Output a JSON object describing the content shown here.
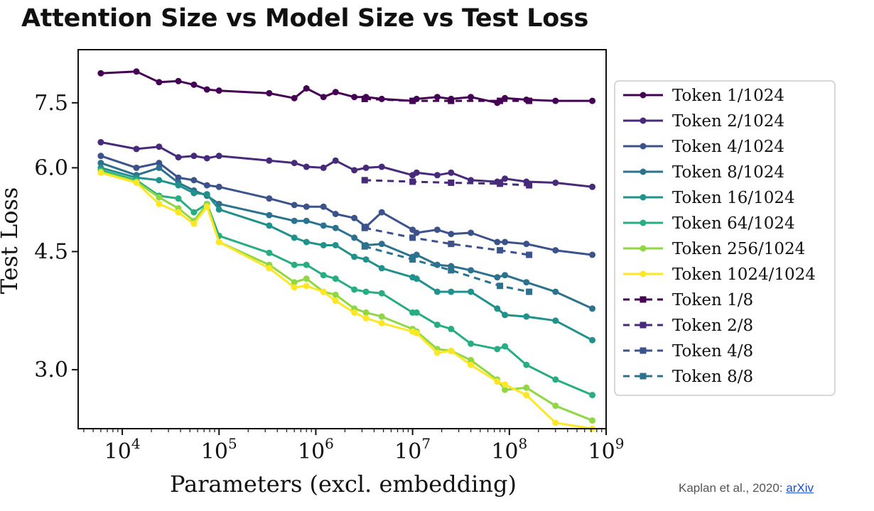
{
  "title": "Attention Size vs Model Size vs Test Loss",
  "source": {
    "text": "Kaplan et al., 2020: ",
    "link_label": "arXiv"
  },
  "chart_data": {
    "type": "line",
    "xlabel": "Parameters (excl. embedding)",
    "ylabel": "Test Loss",
    "x_scale": "log",
    "y_scale": "log",
    "xlim": [
      3500,
      1000000000
    ],
    "ylim": [
      2.45,
      9.0
    ],
    "x_ticks": [
      {
        "value": 10000,
        "base": "10",
        "exp": "4"
      },
      {
        "value": 100000,
        "base": "10",
        "exp": "5"
      },
      {
        "value": 1000000,
        "base": "10",
        "exp": "6"
      },
      {
        "value": 10000000,
        "base": "10",
        "exp": "7"
      },
      {
        "value": 100000000,
        "base": "10",
        "exp": "8"
      },
      {
        "value": 1000000000,
        "base": "10",
        "exp": "9"
      }
    ],
    "y_ticks": [
      {
        "value": 3.0,
        "label": "3.0"
      },
      {
        "value": 4.5,
        "label": "4.5"
      },
      {
        "value": 6.0,
        "label": "6.0"
      },
      {
        "value": 7.5,
        "label": "7.5"
      }
    ],
    "grid": false,
    "legend_position": "right",
    "series": [
      {
        "name": "Token 1/1024",
        "color": "#440154",
        "style": "solid",
        "marker": "circle",
        "x": [
          6000,
          14000,
          24000,
          38000,
          55000,
          75000,
          100000,
          330000,
          600000,
          800000,
          1200000,
          1600000,
          2500000,
          3300000,
          4800000,
          10000000,
          11000000,
          18000000,
          25000000,
          40000000,
          75000000,
          90000000,
          150000000,
          300000000,
          720000000
        ],
        "y": [
          8.3,
          8.35,
          8.05,
          8.08,
          7.98,
          7.85,
          7.82,
          7.75,
          7.62,
          7.88,
          7.65,
          7.78,
          7.65,
          7.65,
          7.6,
          7.55,
          7.6,
          7.65,
          7.6,
          7.65,
          7.5,
          7.62,
          7.58,
          7.55,
          7.55
        ]
      },
      {
        "name": "Token 2/1024",
        "color": "#472a7a",
        "style": "solid",
        "marker": "circle",
        "x": [
          6000,
          14000,
          24000,
          38000,
          55000,
          75000,
          100000,
          330000,
          600000,
          800000,
          1200000,
          1600000,
          2500000,
          3300000,
          4800000,
          10000000,
          11000000,
          18000000,
          25000000,
          40000000,
          75000000,
          90000000,
          150000000,
          300000000,
          720000000
        ],
        "y": [
          6.55,
          6.4,
          6.45,
          6.22,
          6.25,
          6.2,
          6.25,
          6.15,
          6.1,
          6.02,
          6.0,
          6.15,
          5.95,
          6.0,
          6.02,
          5.85,
          5.9,
          5.85,
          5.9,
          5.75,
          5.72,
          5.78,
          5.72,
          5.7,
          5.62
        ]
      },
      {
        "name": "Token 4/1024",
        "color": "#3b528b",
        "style": "solid",
        "marker": "circle",
        "x": [
          6000,
          14000,
          24000,
          38000,
          55000,
          75000,
          100000,
          330000,
          600000,
          800000,
          1200000,
          1600000,
          2500000,
          3300000,
          4800000,
          10000000,
          11000000,
          18000000,
          25000000,
          40000000,
          75000000,
          90000000,
          150000000,
          300000000,
          720000000
        ],
        "y": [
          6.25,
          6.0,
          6.1,
          5.8,
          5.75,
          5.65,
          5.62,
          5.4,
          5.28,
          5.25,
          5.25,
          5.12,
          5.05,
          4.9,
          5.15,
          4.85,
          4.8,
          4.85,
          4.78,
          4.8,
          4.65,
          4.65,
          4.62,
          4.52,
          4.45
        ]
      },
      {
        "name": "Token 8/1024",
        "color": "#2c728e",
        "style": "solid",
        "marker": "circle",
        "x": [
          6000,
          14000,
          24000,
          38000,
          55000,
          75000,
          100000,
          330000,
          600000,
          800000,
          1200000,
          1600000,
          2500000,
          3300000,
          4800000,
          10000000,
          11000000,
          18000000,
          25000000,
          40000000,
          75000000,
          90000000,
          150000000,
          300000000,
          720000000
        ],
        "y": [
          6.1,
          5.85,
          6.0,
          5.7,
          5.55,
          5.45,
          5.3,
          5.1,
          5.0,
          5.0,
          4.92,
          4.88,
          4.72,
          4.6,
          4.62,
          4.42,
          4.45,
          4.3,
          4.28,
          4.22,
          4.12,
          4.15,
          4.05,
          3.92,
          3.7
        ]
      },
      {
        "name": "Token 16/1024",
        "color": "#21918c",
        "style": "solid",
        "marker": "circle",
        "x": [
          6000,
          14000,
          24000,
          38000,
          55000,
          75000,
          100000,
          330000,
          600000,
          800000,
          1200000,
          1600000,
          2500000,
          3300000,
          4800000,
          10000000,
          11000000,
          18000000,
          25000000,
          40000000,
          75000000,
          90000000,
          150000000,
          300000000,
          720000000
        ],
        "y": [
          6.0,
          5.8,
          5.75,
          5.65,
          5.5,
          5.48,
          5.2,
          4.92,
          4.72,
          4.65,
          4.6,
          4.6,
          4.42,
          4.38,
          4.25,
          4.12,
          4.1,
          3.92,
          3.92,
          3.92,
          3.7,
          3.62,
          3.6,
          3.55,
          3.32
        ]
      },
      {
        "name": "Token 64/1024",
        "color": "#27ad81",
        "style": "solid",
        "marker": "circle",
        "x": [
          6000,
          14000,
          24000,
          38000,
          55000,
          75000,
          100000,
          330000,
          600000,
          800000,
          1200000,
          1600000,
          2500000,
          3300000,
          4800000,
          10000000,
          11000000,
          18000000,
          25000000,
          40000000,
          75000000,
          90000000,
          150000000,
          300000000,
          720000000
        ],
        "y": [
          5.95,
          5.75,
          5.45,
          5.4,
          5.15,
          5.3,
          4.75,
          4.48,
          4.3,
          4.3,
          4.15,
          4.1,
          3.95,
          3.92,
          3.9,
          3.65,
          3.65,
          3.5,
          3.45,
          3.28,
          3.22,
          3.25,
          3.05,
          2.9,
          2.75
        ]
      },
      {
        "name": "Token 256/1024",
        "color": "#8fd744",
        "style": "solid",
        "marker": "circle",
        "x": [
          6000,
          14000,
          24000,
          38000,
          55000,
          75000,
          100000,
          330000,
          600000,
          800000,
          1200000,
          1600000,
          2500000,
          3300000,
          4800000,
          10000000,
          11000000,
          18000000,
          25000000,
          40000000,
          75000000,
          90000000,
          150000000,
          300000000,
          720000000
        ],
        "y": [
          5.92,
          5.72,
          5.42,
          5.22,
          5.0,
          5.3,
          4.65,
          4.3,
          4.05,
          4.1,
          3.92,
          3.88,
          3.7,
          3.65,
          3.6,
          3.45,
          3.42,
          3.22,
          3.2,
          3.1,
          2.9,
          2.8,
          2.82,
          2.65,
          2.52
        ]
      },
      {
        "name": "Token 1024/1024",
        "color": "#fde725",
        "style": "solid",
        "marker": "circle",
        "x": [
          6000,
          14000,
          24000,
          38000,
          55000,
          75000,
          100000,
          330000,
          600000,
          800000,
          1200000,
          1600000,
          2500000,
          3300000,
          4800000,
          10000000,
          11000000,
          18000000,
          25000000,
          40000000,
          75000000,
          90000000,
          150000000,
          300000000,
          720000000
        ],
        "y": [
          5.9,
          5.7,
          5.3,
          5.15,
          4.95,
          5.25,
          4.65,
          4.25,
          3.98,
          4.0,
          3.92,
          3.8,
          3.65,
          3.58,
          3.52,
          3.42,
          3.4,
          3.18,
          3.2,
          3.05,
          2.88,
          2.85,
          2.75,
          2.5,
          2.45
        ]
      },
      {
        "name": "Token 1/8",
        "color": "#440154",
        "style": "dashed",
        "marker": "square",
        "x": [
          3200000,
          10000000,
          25000000,
          80000000,
          160000000
        ],
        "y": [
          7.6,
          7.55,
          7.55,
          7.55,
          7.55
        ]
      },
      {
        "name": "Token 2/8",
        "color": "#472a7a",
        "style": "dashed",
        "marker": "square",
        "x": [
          3200000,
          10000000,
          25000000,
          80000000,
          160000000
        ],
        "y": [
          5.75,
          5.72,
          5.7,
          5.68,
          5.65
        ]
      },
      {
        "name": "Token 4/8",
        "color": "#3b528b",
        "style": "dashed",
        "marker": "square",
        "x": [
          3200000,
          10000000,
          25000000,
          80000000,
          160000000
        ],
        "y": [
          4.88,
          4.72,
          4.62,
          4.52,
          4.45
        ]
      },
      {
        "name": "Token 8/8",
        "color": "#2c728e",
        "style": "dashed",
        "marker": "square",
        "x": [
          3200000,
          10000000,
          25000000,
          80000000,
          160000000
        ],
        "y": [
          4.58,
          4.38,
          4.22,
          4.0,
          3.92
        ]
      }
    ]
  }
}
